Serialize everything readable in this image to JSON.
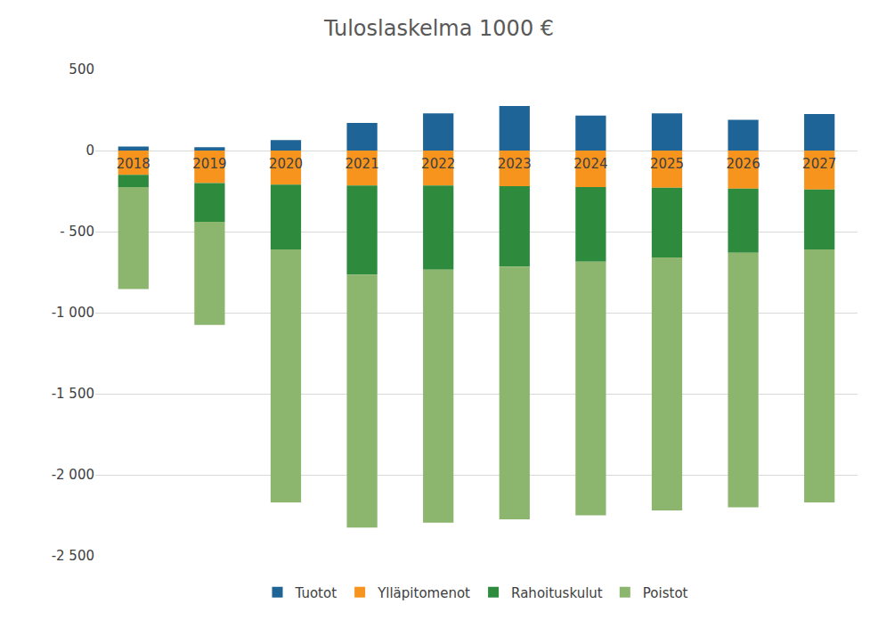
{
  "chart_data": {
    "type": "bar",
    "title": "Tuloslaskelma 1000 €",
    "stacked": true,
    "grid": true,
    "legend": "bottom",
    "categories": [
      "2018",
      "2019",
      "2020",
      "2021",
      "2022",
      "2023",
      "2024",
      "2025",
      "2026",
      "2027"
    ],
    "series": [
      {
        "name": "Tuotot",
        "color": "#1f6496",
        "values": [
          25,
          20,
          65,
          170,
          230,
          275,
          215,
          230,
          190,
          225
        ]
      },
      {
        "name": "Ylläpitomenot",
        "color": "#f7941d",
        "values": [
          -150,
          -200,
          -210,
          -215,
          -215,
          -220,
          -225,
          -230,
          -235,
          -240
        ]
      },
      {
        "name": "Rahoituskulut",
        "color": "#2e8b3e",
        "values": [
          -75,
          -240,
          -400,
          -550,
          -520,
          -495,
          -460,
          -430,
          -395,
          -370
        ]
      },
      {
        "name": "Poistot",
        "color": "#8cb56e",
        "values": [
          -630,
          -635,
          -1560,
          -1560,
          -1560,
          -1560,
          -1565,
          -1560,
          -1570,
          -1560
        ]
      }
    ],
    "ylim": [
      -2500,
      500
    ],
    "yticks": [
      {
        "value": -2500,
        "label": "-2 500"
      },
      {
        "value": -2000,
        "label": "-2 000"
      },
      {
        "value": -1500,
        "label": "-1 500"
      },
      {
        "value": -1000,
        "label": "-1 000"
      },
      {
        "value": -500,
        "label": "- 500"
      },
      0,
      500
    ]
  }
}
